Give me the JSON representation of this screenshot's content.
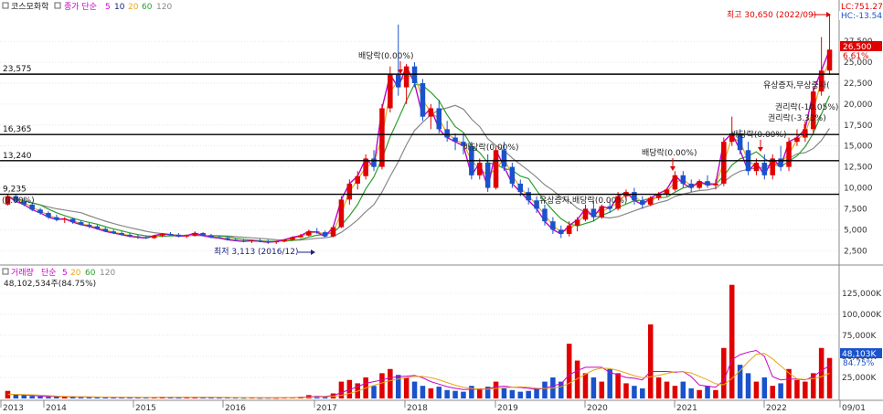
{
  "chart_data": {
    "type": "candlestick",
    "price_panel": {
      "legend": {
        "ticker": "코스모화학",
        "ma_label": "종가 단순",
        "periods": [
          "5",
          "10",
          "20",
          "60",
          "120"
        ],
        "colors": [
          "#cc00cc",
          "#1a237e",
          "#e6a817",
          "#2e9e2e",
          "#888888"
        ]
      },
      "y_ticks": [
        "27,500",
        "25,000",
        "22,500",
        "20,000",
        "17,500",
        "15,000",
        "12,500",
        "10,000",
        "7,500",
        "5,000",
        "2,500"
      ],
      "y_tick_values": [
        27500,
        25000,
        22500,
        20000,
        17500,
        15000,
        12500,
        10000,
        7500,
        5000,
        2500
      ],
      "ylim": [
        1000,
        30900
      ],
      "h_lines": [
        {
          "value": 23575,
          "label": "23,575"
        },
        {
          "value": 16365,
          "label": "16,365"
        },
        {
          "value": 13240,
          "label": "13,240"
        },
        {
          "value": 9235,
          "label": "9,235"
        }
      ],
      "top_right": {
        "lc": "LC:751.27",
        "hc": "HC:-13.54"
      },
      "current_price": {
        "label": "26,500",
        "value": 26500,
        "change": "6.61%"
      },
      "annotations": [
        {
          "text": "최고 30,650 (2022/09)",
          "color": "#e00000"
        },
        {
          "text": "최저 3,113 (2016/12)",
          "color": "#1a237e"
        },
        {
          "text": "배당락(0.00%)"
        },
        {
          "text": "배당락(0.00%)"
        },
        {
          "text": "배당락(0.00%)"
        },
        {
          "text": "배당락(0.00%)"
        },
        {
          "text": "유상증자,배당락(0.00%)"
        },
        {
          "text": "유상증자,무상증자("
        },
        {
          "text": "권리락(-10.05%)"
        },
        {
          "text": "권리락(-3.33%)"
        },
        {
          "text": "배당락(0.00%)"
        },
        {
          "text": "(0.00%)"
        }
      ],
      "candles": [
        [
          8000,
          9200,
          7900,
          9000
        ],
        [
          9000,
          9300,
          8200,
          8400
        ],
        [
          8400,
          8800,
          7800,
          8000
        ],
        [
          8000,
          8200,
          7200,
          7400
        ],
        [
          7400,
          7600,
          6800,
          7000
        ],
        [
          7000,
          7200,
          6300,
          6500
        ],
        [
          6500,
          6800,
          6000,
          6200
        ],
        [
          6200,
          6500,
          5800,
          6300
        ],
        [
          6300,
          6400,
          5700,
          5900
        ],
        [
          5900,
          6100,
          5500,
          5600
        ],
        [
          5600,
          5800,
          5200,
          5400
        ],
        [
          5400,
          5600,
          5000,
          5100
        ],
        [
          5100,
          5300,
          4700,
          4800
        ],
        [
          4800,
          5000,
          4500,
          4600
        ],
        [
          4600,
          4800,
          4300,
          4400
        ],
        [
          4400,
          4600,
          4100,
          4200
        ],
        [
          4200,
          4400,
          3900,
          4100
        ],
        [
          4100,
          4300,
          3900,
          4000
        ],
        [
          4000,
          4400,
          3900,
          4300
        ],
        [
          4300,
          4600,
          4100,
          4500
        ],
        [
          4500,
          4700,
          4300,
          4400
        ],
        [
          4400,
          4600,
          4100,
          4200
        ],
        [
          4200,
          4400,
          4000,
          4300
        ],
        [
          4300,
          4800,
          4200,
          4600
        ],
        [
          4600,
          4700,
          4200,
          4300
        ],
        [
          4300,
          4500,
          4000,
          4100
        ],
        [
          4100,
          4300,
          3900,
          4000
        ],
        [
          4000,
          4200,
          3700,
          3800
        ],
        [
          3800,
          4000,
          3600,
          3700
        ],
        [
          3700,
          3900,
          3500,
          3600
        ],
        [
          3600,
          3800,
          3400,
          3700
        ],
        [
          3700,
          3900,
          3500,
          3600
        ],
        [
          3600,
          3800,
          3300,
          3500
        ],
        [
          3500,
          3700,
          3300,
          3600
        ],
        [
          3600,
          3900,
          3500,
          3800
        ],
        [
          3800,
          4200,
          3700,
          4100
        ],
        [
          4100,
          4500,
          4000,
          4300
        ],
        [
          4300,
          5000,
          4200,
          4800
        ],
        [
          4800,
          5200,
          4500,
          4700
        ],
        [
          4700,
          4900,
          4100,
          4200
        ],
        [
          4200,
          5500,
          4100,
          5300
        ],
        [
          5300,
          9000,
          5200,
          8600
        ],
        [
          8600,
          11000,
          8000,
          10500
        ],
        [
          10500,
          12000,
          9800,
          11400
        ],
        [
          11400,
          14000,
          11000,
          13500
        ],
        [
          13500,
          14500,
          12000,
          12500
        ],
        [
          12500,
          20000,
          12200,
          19500
        ],
        [
          19500,
          24500,
          19000,
          23500
        ],
        [
          23500,
          29500,
          21000,
          22000
        ],
        [
          22000,
          24800,
          20000,
          24500
        ],
        [
          24500,
          25000,
          22000,
          22500
        ],
        [
          22500,
          23000,
          18000,
          18500
        ],
        [
          18500,
          20000,
          17000,
          19500
        ],
        [
          19500,
          20500,
          16500,
          17000
        ],
        [
          17000,
          18000,
          15500,
          16000
        ],
        [
          16000,
          16500,
          14500,
          15500
        ],
        [
          15500,
          16500,
          14000,
          15000
        ],
        [
          15000,
          15500,
          11000,
          11500
        ],
        [
          11500,
          13500,
          11000,
          13000
        ],
        [
          13000,
          14000,
          9500,
          10000
        ],
        [
          10000,
          15000,
          9800,
          14500
        ],
        [
          14500,
          15500,
          12000,
          12500
        ],
        [
          12500,
          13000,
          10000,
          10500
        ],
        [
          10500,
          11000,
          9000,
          9500
        ],
        [
          9500,
          10000,
          8000,
          8500
        ],
        [
          8500,
          9000,
          7000,
          7500
        ],
        [
          7500,
          8000,
          5500,
          6000
        ],
        [
          6000,
          6500,
          4500,
          5000
        ],
        [
          5000,
          5500,
          4000,
          4500
        ],
        [
          4500,
          6000,
          4200,
          5500
        ],
        [
          5500,
          6500,
          4800,
          6200
        ],
        [
          6200,
          8000,
          6000,
          7500
        ],
        [
          7500,
          8500,
          6000,
          6500
        ],
        [
          6500,
          8000,
          6300,
          7800
        ],
        [
          7800,
          8500,
          7000,
          7500
        ],
        [
          7500,
          9500,
          7300,
          9000
        ],
        [
          9000,
          9800,
          8500,
          9500
        ],
        [
          9500,
          10000,
          8000,
          8500
        ],
        [
          8500,
          9000,
          7500,
          8000
        ],
        [
          8000,
          9000,
          7800,
          8800
        ],
        [
          8800,
          9500,
          8500,
          9300
        ],
        [
          9300,
          10000,
          9000,
          9800
        ],
        [
          9800,
          12000,
          9600,
          11500
        ],
        [
          11500,
          12000,
          10000,
          10500
        ],
        [
          10500,
          11000,
          9500,
          10000
        ],
        [
          10000,
          11000,
          9800,
          10800
        ],
        [
          10800,
          11500,
          10000,
          10300
        ],
        [
          10300,
          11000,
          9800,
          10500
        ],
        [
          10500,
          16000,
          10200,
          15500
        ],
        [
          15500,
          18500,
          15000,
          16500
        ],
        [
          16500,
          17000,
          14000,
          14500
        ],
        [
          14500,
          15500,
          11500,
          12000
        ],
        [
          12000,
          13500,
          11500,
          13000
        ],
        [
          13000,
          14000,
          11000,
          11500
        ],
        [
          11500,
          14000,
          11000,
          13500
        ],
        [
          13500,
          15000,
          12000,
          12500
        ],
        [
          12500,
          16000,
          12000,
          15500
        ],
        [
          15500,
          17000,
          15000,
          16000
        ],
        [
          16000,
          18000,
          15500,
          17000
        ],
        [
          17000,
          22000,
          16500,
          21500
        ],
        [
          21500,
          28000,
          21000,
          24000
        ],
        [
          24000,
          30650,
          23500,
          26500
        ]
      ]
    },
    "volume_panel": {
      "legend": {
        "label": "거래량",
        "ma_label": "단순",
        "periods": [
          "5",
          "20",
          "60",
          "120"
        ],
        "colors": [
          "#cc00cc",
          "#e6a817",
          "#2e9e2e",
          "#888888"
        ]
      },
      "volume_info": "48,102,534주(84.75%)",
      "y_ticks": [
        "125,000K",
        "100,000K",
        "75,000K",
        "50,000K",
        "25,000K"
      ],
      "y_tick_values": [
        125000,
        100000,
        75000,
        50000,
        25000
      ],
      "ylim": [
        0,
        152000
      ],
      "current": {
        "label": "48,103K",
        "value": 48103,
        "pct": "84.75%"
      },
      "volumes_k": [
        9000,
        5000,
        4000,
        3000,
        2500,
        2000,
        2500,
        2000,
        1800,
        1500,
        1800,
        1500,
        1500,
        1200,
        1300,
        1000,
        1200,
        1000,
        1500,
        1800,
        1200,
        1000,
        1300,
        1500,
        1200,
        1000,
        1000,
        1200,
        1000,
        900,
        1000,
        800,
        900,
        800,
        1000,
        1500,
        2000,
        4000,
        3000,
        2500,
        6000,
        20000,
        22000,
        18000,
        25000,
        15000,
        30000,
        35000,
        28000,
        25000,
        20000,
        15000,
        12000,
        14000,
        10000,
        9000,
        8000,
        15000,
        12000,
        14000,
        20000,
        12000,
        10000,
        8000,
        9000,
        12000,
        20000,
        25000,
        20000,
        65000,
        45000,
        30000,
        25000,
        20000,
        35000,
        30000,
        18000,
        15000,
        12000,
        88000,
        25000,
        20000,
        15000,
        20000,
        12000,
        10000,
        15000,
        10000,
        60000,
        135000,
        40000,
        30000,
        20000,
        25000,
        15000,
        18000,
        35000,
        22000,
        20000,
        30000,
        60000,
        48103
      ],
      "ma5_k": [
        5000,
        4800,
        4200,
        3500,
        3000,
        2600,
        2300,
        2200,
        2000,
        1800,
        1700,
        1600,
        1500,
        1400,
        1300,
        1250,
        1200,
        1150,
        1200,
        1300,
        1350,
        1300,
        1250,
        1300,
        1300,
        1250,
        1200,
        1150,
        1100,
        1050,
        1000,
        950,
        900,
        900,
        950,
        1100,
        1300,
        1900,
        2300,
        2600,
        3400,
        7000,
        10500,
        14000,
        18000,
        20000,
        22000,
        24500,
        26000,
        26500,
        27500,
        24500,
        20000,
        17000,
        14000,
        12000,
        10500,
        11000,
        11000,
        11500,
        14000,
        14500,
        13500,
        13000,
        12000,
        10500,
        12000,
        15000,
        17500,
        28000,
        33000,
        37000,
        37000,
        37000,
        31000,
        28000,
        25000,
        24000,
        22000,
        32000,
        32000,
        32000,
        31000,
        32000,
        26000,
        16000,
        14500,
        13500,
        21000,
        46000,
        52000,
        55000,
        57000,
        50000,
        26000,
        22000,
        23000,
        23000,
        22000,
        26000,
        33000,
        39000
      ]
    },
    "x_labels": [
      "2013",
      "2014",
      "2015",
      "2016",
      "2017",
      "2018",
      "2019",
      "2020",
      "2021",
      "2022",
      "09/01"
    ]
  },
  "colors": {
    "up": "#e00000",
    "down": "#1a52cc",
    "grid": "#d8d8d8",
    "axis_text": "#333333"
  }
}
